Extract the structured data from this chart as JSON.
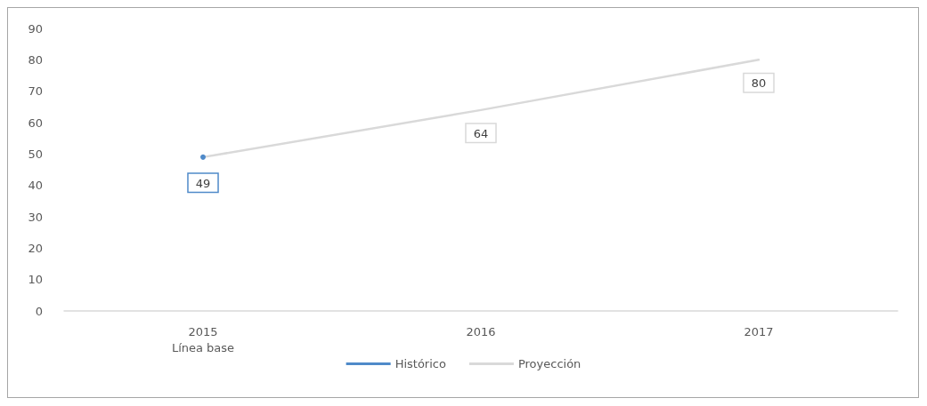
{
  "chart_data": {
    "type": "line",
    "categories": [
      "2015\nLínea base",
      "2016",
      "2017"
    ],
    "series": [
      {
        "name": "Histórico",
        "color": "#4f8ac9",
        "values": [
          49,
          null,
          null
        ],
        "value_labels": [
          "49",
          null,
          null
        ],
        "marker": "circle"
      },
      {
        "name": "Proyección",
        "color": "#d9d9d9",
        "values": [
          49,
          64,
          80
        ],
        "value_labels": [
          null,
          "64",
          "80"
        ]
      }
    ],
    "ylim": [
      0,
      90
    ],
    "yticks": [
      0,
      10,
      20,
      30,
      40,
      50,
      60,
      70,
      80,
      90
    ],
    "grid": false,
    "legend": "bottom",
    "marker": "none",
    "line_style": "solid"
  }
}
